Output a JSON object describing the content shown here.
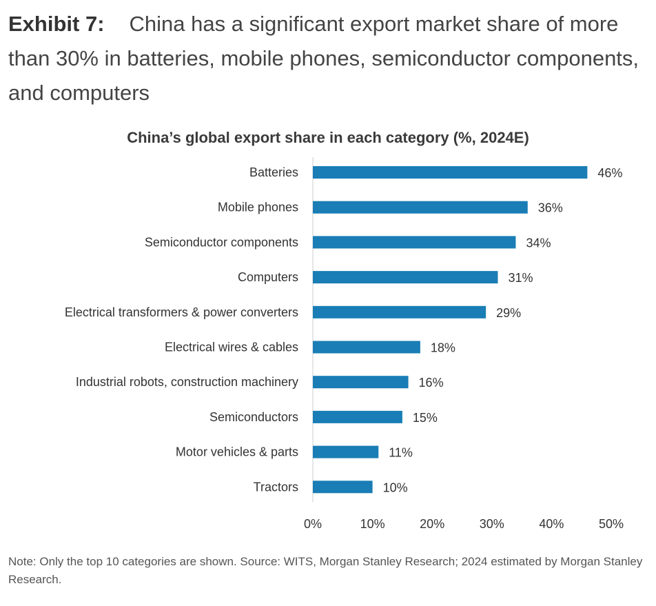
{
  "header": {
    "label": "Exhibit 7:",
    "text": "China has a significant export market share of more than 30% in batteries, mobile phones, semiconductor components, and computers"
  },
  "chart_data": {
    "type": "bar",
    "orientation": "horizontal",
    "title": "China’s global export share in each category (%, 2024E)",
    "categories": [
      "Batteries",
      "Mobile phones",
      "Semiconductor components",
      "Computers",
      "Electrical transformers & power converters",
      "Electrical wires & cables",
      "Industrial robots, construction machinery",
      "Semiconductors",
      "Motor vehicles & parts",
      "Tractors"
    ],
    "values": [
      46,
      36,
      34,
      31,
      29,
      18,
      16,
      15,
      11,
      10
    ],
    "data_labels": [
      "46%",
      "36%",
      "34%",
      "31%",
      "29%",
      "18%",
      "16%",
      "15%",
      "11%",
      "10%"
    ],
    "xlim": [
      0,
      50
    ],
    "xticks": [
      0,
      10,
      20,
      30,
      40,
      50
    ],
    "xtick_labels": [
      "0%",
      "10%",
      "20%",
      "30%",
      "40%",
      "50%"
    ],
    "grid": false,
    "bar_color": "#1a7db5"
  },
  "note": "Note: Only the top 10 categories are shown. Source: WITS, Morgan Stanley Research; 2024 estimated by Morgan Stanley Research."
}
